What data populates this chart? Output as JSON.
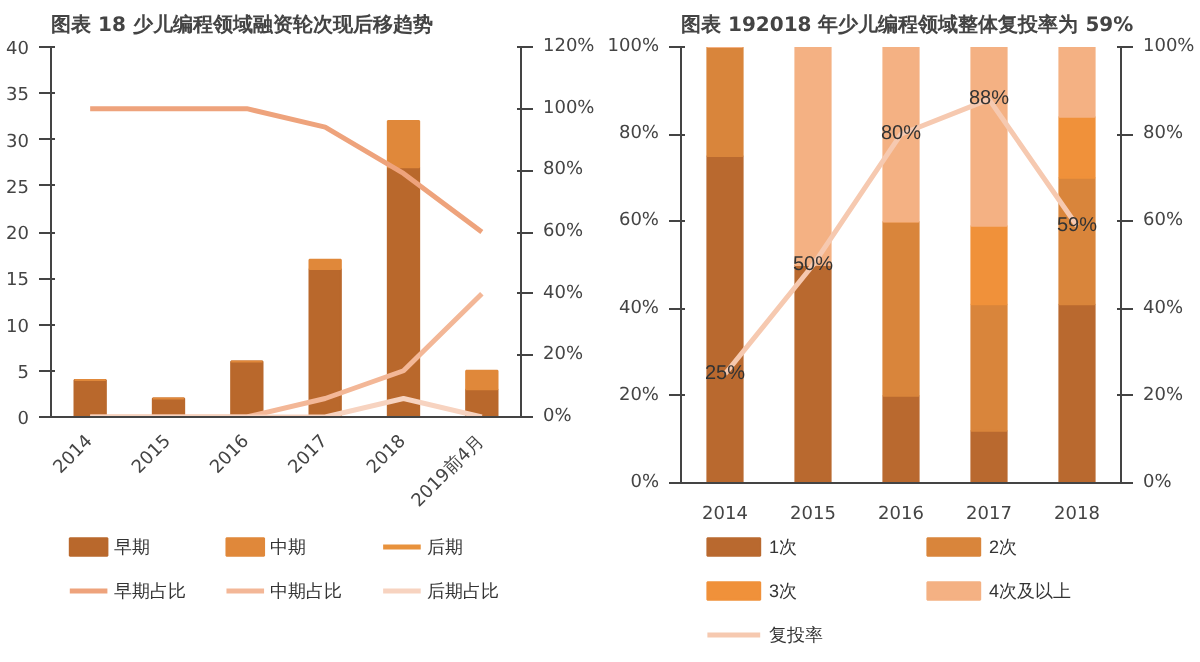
{
  "chart_data": [
    {
      "type": "bar",
      "title": "图表 18 少儿编程领域融资轮次现后移趋势",
      "categories": [
        "2014",
        "2015",
        "2016",
        "2017",
        "2018",
        "2019前4月"
      ],
      "stacked": true,
      "legend": "bottom",
      "ylim": [
        0,
        40
      ],
      "yticks": [
        0,
        5,
        10,
        15,
        20,
        25,
        30,
        35,
        40
      ],
      "y2lim": [
        0,
        120
      ],
      "y2ticks": [
        {
          "value": 0,
          "label": "0%"
        },
        {
          "value": 20,
          "label": "20%"
        },
        {
          "value": 40,
          "label": "40%"
        },
        {
          "value": 60,
          "label": "60%"
        },
        {
          "value": 80,
          "label": "80%"
        },
        {
          "value": 100,
          "label": "100%"
        },
        {
          "value": 120,
          "label": "120%"
        }
      ],
      "series": [
        {
          "name": "早期",
          "color": "#b9682c",
          "values": [
            4,
            2,
            6,
            16,
            27,
            3
          ]
        },
        {
          "name": "中期",
          "color": "#e0883a",
          "values": [
            0,
            0,
            0,
            1,
            5,
            2
          ]
        },
        {
          "name": "后期",
          "type": "line",
          "color": "#e8923c",
          "values": [
            null,
            null,
            null,
            null,
            null,
            null
          ]
        },
        {
          "name": "早期占比",
          "type": "line",
          "axis": "y2",
          "color": "#eea37c",
          "values": [
            100,
            100,
            100,
            94,
            79,
            60
          ]
        },
        {
          "name": "中期占比",
          "type": "line",
          "axis": "y2",
          "color": "#f3b797",
          "values": [
            0,
            0,
            0,
            6,
            15,
            40
          ]
        },
        {
          "name": "后期占比",
          "type": "line",
          "axis": "y2",
          "color": "#f7d3c0",
          "values": [
            0,
            0,
            0,
            0,
            6,
            0
          ]
        }
      ]
    },
    {
      "type": "bar",
      "title": "图表 192018 年少儿编程领域整体复投率为 59%",
      "categories": [
        "2014",
        "2015",
        "2016",
        "2017",
        "2018"
      ],
      "stacked": true,
      "legend": "bottom",
      "ylim": [
        0,
        100
      ],
      "yticks": [
        {
          "value": 0,
          "label": "0%"
        },
        {
          "value": 20,
          "label": "20%"
        },
        {
          "value": 40,
          "label": "40%"
        },
        {
          "value": 60,
          "label": "60%"
        },
        {
          "value": 80,
          "label": "80%"
        },
        {
          "value": 100,
          "label": "100%"
        }
      ],
      "y2lim": [
        0,
        100
      ],
      "y2ticks": [
        {
          "value": 0,
          "label": "0%"
        },
        {
          "value": 20,
          "label": "20%"
        },
        {
          "value": 40,
          "label": "40%"
        },
        {
          "value": 60,
          "label": "60%"
        },
        {
          "value": 80,
          "label": "80%"
        },
        {
          "value": 100,
          "label": "100%"
        }
      ],
      "series": [
        {
          "name": "1次",
          "color": "#b9692f",
          "values": [
            75,
            50,
            20,
            12,
            41
          ]
        },
        {
          "name": "2次",
          "color": "#d9853b",
          "values": [
            25,
            0,
            40,
            29,
            29
          ]
        },
        {
          "name": "3次",
          "color": "#f0913a",
          "values": [
            0,
            0,
            0,
            18,
            14
          ]
        },
        {
          "name": "4次及以上",
          "color": "#f4b183",
          "values": [
            0,
            50,
            40,
            41,
            16
          ]
        },
        {
          "name": "复投率",
          "type": "line",
          "axis": "y2",
          "color": "#f6c9b0",
          "values": [
            25,
            50,
            80,
            88,
            59
          ],
          "value_labels": [
            "25%",
            "50%",
            "80%",
            "88%",
            "59%"
          ]
        }
      ]
    }
  ]
}
